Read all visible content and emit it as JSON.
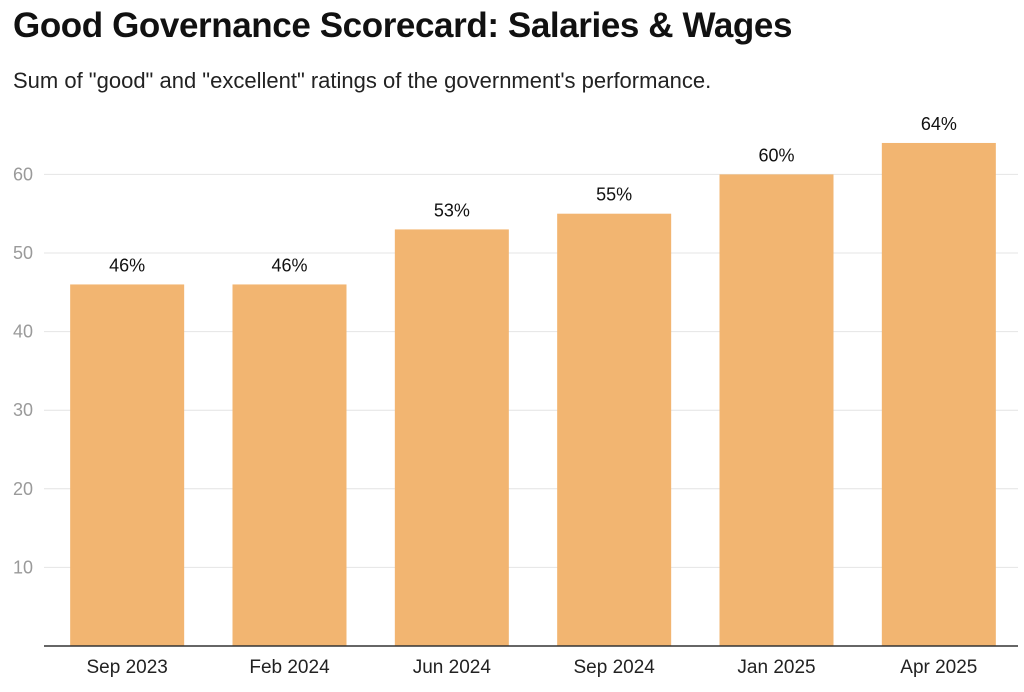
{
  "chart_data": {
    "type": "bar",
    "title": "Good Governance Scorecard: Salaries & Wages",
    "subtitle": "Sum of \"good\" and \"excellent\" ratings of the government's performance.",
    "categories": [
      "Sep 2023",
      "Feb 2024",
      "Jun 2024",
      "Sep 2024",
      "Jan 2025",
      "Apr 2025"
    ],
    "values": [
      46,
      46,
      53,
      55,
      60,
      64
    ],
    "value_labels": [
      "46%",
      "46%",
      "53%",
      "55%",
      "60%",
      "64%"
    ],
    "y_ticks": [
      10,
      20,
      30,
      40,
      50,
      60
    ],
    "y_tick_labels": [
      "10",
      "20",
      "30",
      "40",
      "50",
      "60"
    ],
    "ylim": [
      0,
      70
    ],
    "grid": true,
    "legend": "none",
    "colors": {
      "bar": "#f2b571",
      "grid": "#e4e4e4",
      "axis": "#333333"
    }
  }
}
